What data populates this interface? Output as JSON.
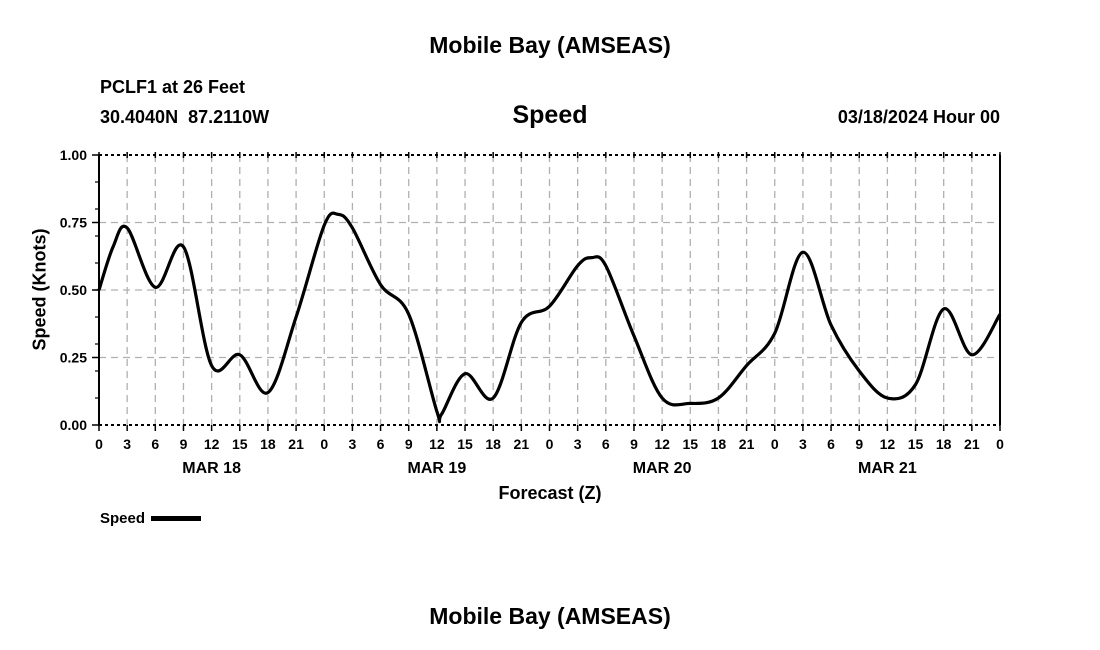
{
  "header": {
    "title": "Mobile Bay (AMSEAS)",
    "station": "PCLF1 at 26 Feet",
    "coords": "30.4040N  87.2110W",
    "variable": "Speed",
    "datetime": "03/18/2024 Hour 00"
  },
  "footer": {
    "title": "Mobile Bay (AMSEAS)"
  },
  "chart_data": {
    "type": "line",
    "title": "Speed",
    "xlabel": "Forecast (Z)",
    "ylabel": "Speed (Knots)",
    "xlim": [
      0,
      96
    ],
    "ylim": [
      0,
      1
    ],
    "grid": true,
    "y_ticks": [
      "0.00",
      "0.25",
      "0.50",
      "0.75",
      "1.00"
    ],
    "x_tick_labels": [
      "0",
      "3",
      "6",
      "9",
      "12",
      "15",
      "18",
      "21",
      "0",
      "3",
      "6",
      "9",
      "12",
      "15",
      "18",
      "21",
      "0",
      "3",
      "6",
      "9",
      "12",
      "15",
      "18",
      "21",
      "0",
      "3",
      "6",
      "9",
      "12",
      "15",
      "18",
      "21",
      "0"
    ],
    "date_labels": [
      {
        "hour": 12,
        "label": "MAR 18"
      },
      {
        "hour": 36,
        "label": "MAR 19"
      },
      {
        "hour": 60,
        "label": "MAR 20"
      },
      {
        "hour": 84,
        "label": "MAR 21"
      }
    ],
    "legend": {
      "label": "Speed",
      "placement": "bottom-left"
    },
    "series": [
      {
        "name": "Speed",
        "color": "#000000",
        "x": [
          0,
          1.5,
          3,
          6,
          9,
          12,
          15,
          18,
          21,
          24,
          25.5,
          27,
          30,
          33,
          36,
          36.5,
          39,
          42,
          45,
          48,
          51,
          52.5,
          54,
          57,
          60,
          63,
          66,
          69,
          72,
          75,
          78,
          81,
          84,
          87,
          90,
          93,
          96
        ],
        "y": [
          0.5,
          0.66,
          0.73,
          0.51,
          0.66,
          0.22,
          0.26,
          0.12,
          0.4,
          0.74,
          0.78,
          0.73,
          0.52,
          0.41,
          0.05,
          0.04,
          0.19,
          0.1,
          0.38,
          0.44,
          0.59,
          0.62,
          0.59,
          0.33,
          0.1,
          0.08,
          0.1,
          0.22,
          0.34,
          0.64,
          0.37,
          0.2,
          0.1,
          0.15,
          0.43,
          0.26,
          0.41
        ]
      }
    ]
  }
}
